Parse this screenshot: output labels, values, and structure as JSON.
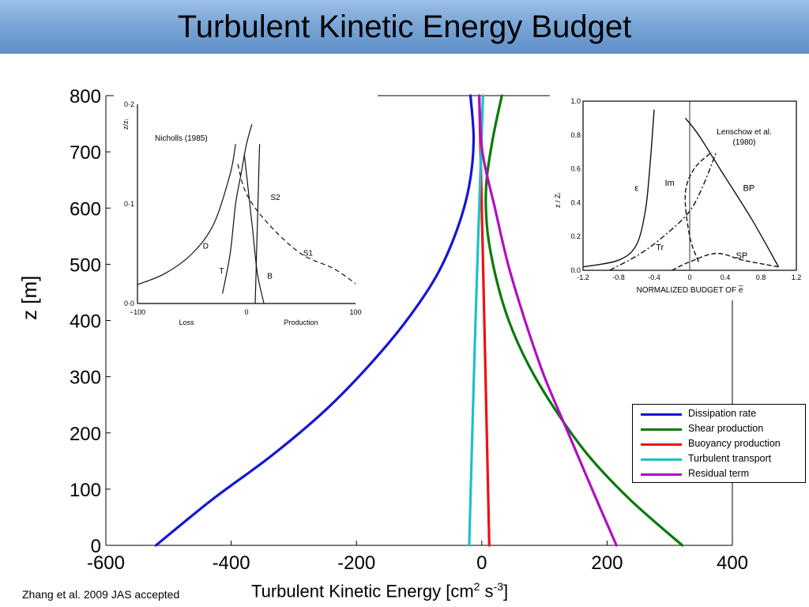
{
  "slide_title": "Turbulent Kinetic Energy Budget",
  "citation": "Zhang et al. 2009 JAS accepted",
  "chart_data": [
    {
      "type": "line",
      "title": "",
      "xlabel": "Turbulent Kinetic Energy [cm",
      "xlabel_sup1": "2",
      "xlabel_mid": " s",
      "xlabel_sup2": "-3",
      "xlabel_end": "]",
      "ylabel": "z [m]",
      "xlim": [
        -600,
        400
      ],
      "ylim": [
        0,
        800
      ],
      "xticks": [
        "-600",
        "-400",
        "-200",
        "0",
        "200",
        "400"
      ],
      "yticks": [
        "0",
        "100",
        "200",
        "300",
        "400",
        "500",
        "600",
        "700",
        "800"
      ],
      "legend_position": "lower-right",
      "series": [
        {
          "name": "Dissipation rate",
          "color": "#1515d6",
          "x": [
            -520,
            -432,
            -335,
            -250,
            -180,
            -120,
            -72,
            -40,
            -20,
            -13,
            -18
          ],
          "y": [
            0,
            80,
            160,
            240,
            320,
            400,
            480,
            560,
            640,
            720,
            800
          ]
        },
        {
          "name": "Shear production",
          "color": "#0a7a0a",
          "x": [
            320,
            238,
            170,
            118,
            75,
            43,
            22,
            9,
            7,
            17,
            32
          ],
          "y": [
            0,
            80,
            160,
            240,
            320,
            400,
            480,
            560,
            640,
            720,
            800
          ]
        },
        {
          "name": "Buoyancy production",
          "color": "#ee1111",
          "x": [
            12,
            4,
            -4
          ],
          "y": [
            0,
            400,
            800
          ]
        },
        {
          "name": "Turbulent transport",
          "color": "#1ec0c8",
          "x": [
            -20,
            -10,
            2
          ],
          "y": [
            0,
            400,
            800
          ]
        },
        {
          "name": "Residual term",
          "color": "#b010c0",
          "x": [
            215,
            176,
            138,
            100,
            69,
            42,
            21,
            1,
            -4
          ],
          "y": [
            0,
            100,
            200,
            300,
            400,
            500,
            600,
            700,
            800
          ]
        }
      ]
    },
    {
      "type": "line",
      "annotation": "Nicholls (1985)",
      "ylabel": "z/zᵢ",
      "xlabel_left": "Loss",
      "xlabel_right": "Production",
      "xlim": [
        -100,
        100
      ],
      "ylim": [
        0,
        0.2
      ],
      "xticks": [
        "−100",
        "0",
        "100"
      ],
      "yticks": [
        "0·0",
        "0·1",
        "0·2"
      ],
      "series": [
        {
          "name": "D",
          "x": [
            -100,
            -75,
            -50,
            -30,
            -15,
            -10
          ],
          "y": [
            0.019,
            0.03,
            0.05,
            0.08,
            0.13,
            0.16
          ]
        },
        {
          "name": "T",
          "x": [
            -22,
            -15,
            -10,
            -5,
            0,
            5
          ],
          "y": [
            0.01,
            0.05,
            0.1,
            0.13,
            0.16,
            0.18
          ]
        },
        {
          "name": "B",
          "x": [
            -2,
            2,
            6,
            10,
            16
          ],
          "y": [
            0.15,
            0.11,
            0.07,
            0.03,
            0.0
          ]
        },
        {
          "name": "S1",
          "x": [
            -8,
            0,
            20,
            50,
            80,
            100
          ],
          "y": [
            0.14,
            0.11,
            0.08,
            0.05,
            0.035,
            0.02
          ]
        },
        {
          "name": "S2",
          "x": [
            8,
            9,
            10,
            11,
            12
          ],
          "y": [
            0.0,
            0.04,
            0.08,
            0.12,
            0.16
          ]
        }
      ],
      "labels": [
        "D",
        "T",
        "B",
        "S1",
        "S2"
      ]
    },
    {
      "type": "line",
      "annotation_line1": "Lenschow et al.",
      "annotation_line2": "(1980)",
      "ylabel": "z / Zᵢ",
      "xlabel": "NORMALIZED BUDGET OF e̅",
      "xlim": [
        -1.2,
        1.2
      ],
      "ylim": [
        0,
        1.0
      ],
      "xticks": [
        "-1.2",
        "-0.8",
        "-0.4",
        "0",
        "0.4",
        "0.8",
        "1.2"
      ],
      "yticks": [
        "0.0",
        "0.2",
        "0.4",
        "0.6",
        "0.8",
        "1.0"
      ],
      "series": [
        {
          "name": "ε",
          "x": [
            -1.2,
            -0.8,
            -0.6,
            -0.5,
            -0.45,
            -0.4
          ],
          "y": [
            0.02,
            0.06,
            0.15,
            0.35,
            0.6,
            0.95
          ]
        },
        {
          "name": "Tr",
          "x": [
            -0.9,
            -0.55,
            -0.25,
            0.0,
            0.15,
            0.3
          ],
          "y": [
            0.0,
            0.1,
            0.22,
            0.35,
            0.5,
            0.7
          ]
        },
        {
          "name": "Im",
          "x": [
            0.1,
            0.0,
            -0.05,
            0.05,
            0.25
          ],
          "y": [
            0.05,
            0.2,
            0.45,
            0.6,
            0.7
          ]
        },
        {
          "name": "BP",
          "x": [
            -0.05,
            0.1,
            0.4,
            0.7,
            1.0
          ],
          "y": [
            0.9,
            0.8,
            0.55,
            0.3,
            0.02
          ]
        },
        {
          "name": "SP",
          "x": [
            -0.2,
            0.0,
            0.3,
            0.6,
            1.0
          ],
          "y": [
            0.0,
            0.05,
            0.1,
            0.06,
            0.02
          ]
        }
      ],
      "labels": [
        "ε",
        "Im",
        "BP",
        "Tr",
        "SP"
      ]
    }
  ]
}
